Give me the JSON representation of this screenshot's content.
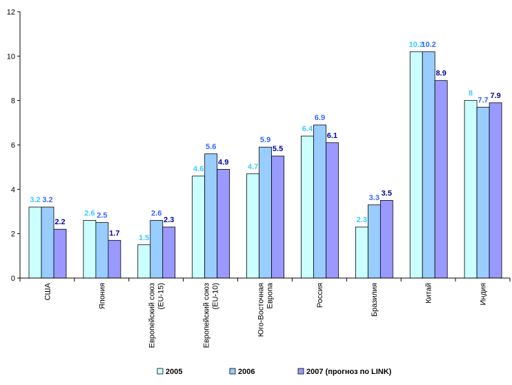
{
  "chart_data": {
    "type": "bar",
    "categories": [
      [
        "США"
      ],
      [
        "Япония"
      ],
      [
        "Европейский союз",
        "(EU-15)"
      ],
      [
        "Европейский союз",
        "(EU-10)"
      ],
      [
        "Юго-Восточная",
        "Европа"
      ],
      [
        "Россия"
      ],
      [
        "Бразилия"
      ],
      [
        "Китай"
      ],
      [
        "Индия"
      ]
    ],
    "series": [
      {
        "name": "2005",
        "values": [
          3.2,
          2.6,
          1.5,
          4.6,
          4.7,
          6.4,
          2.3,
          10.2,
          8
        ],
        "value_labels": [
          "3.2",
          "2.6",
          "1.5",
          "4.6",
          "4.7",
          "6.4",
          "2.3",
          "10.2",
          "8"
        ],
        "color": "#ccffff",
        "label_color": "#33ccff"
      },
      {
        "name": "2006",
        "values": [
          3.2,
          2.5,
          2.6,
          5.6,
          5.9,
          6.9,
          3.3,
          10.2,
          7.7
        ],
        "value_labels": [
          "3.2",
          "2.5",
          "2.6",
          "5.6",
          "5.9",
          "6.9",
          "3.3",
          "10.2",
          "7.7"
        ],
        "color": "#99ccff",
        "label_color": "#3366ff"
      },
      {
        "name": "2007 (прогноз по LINK)",
        "values": [
          2.2,
          1.7,
          2.3,
          4.9,
          5.5,
          6.1,
          3.5,
          8.9,
          7.9
        ],
        "value_labels": [
          "2.2",
          "1.7",
          "2.3",
          "4.9",
          "5.5",
          "6.1",
          "3.5",
          "8.9",
          "7.9"
        ],
        "color": "#9999ff",
        "label_color": "#000099"
      }
    ],
    "y_ticks": [
      "0",
      "2",
      "4",
      "6",
      "8",
      "10",
      "12"
    ],
    "ylim": [
      0,
      12
    ],
    "grid": false,
    "legend_position": "bottom",
    "title": "",
    "xlabel": "",
    "ylabel": "",
    "colors": {
      "axis": "#000000",
      "bar_stroke": "#000000"
    }
  }
}
